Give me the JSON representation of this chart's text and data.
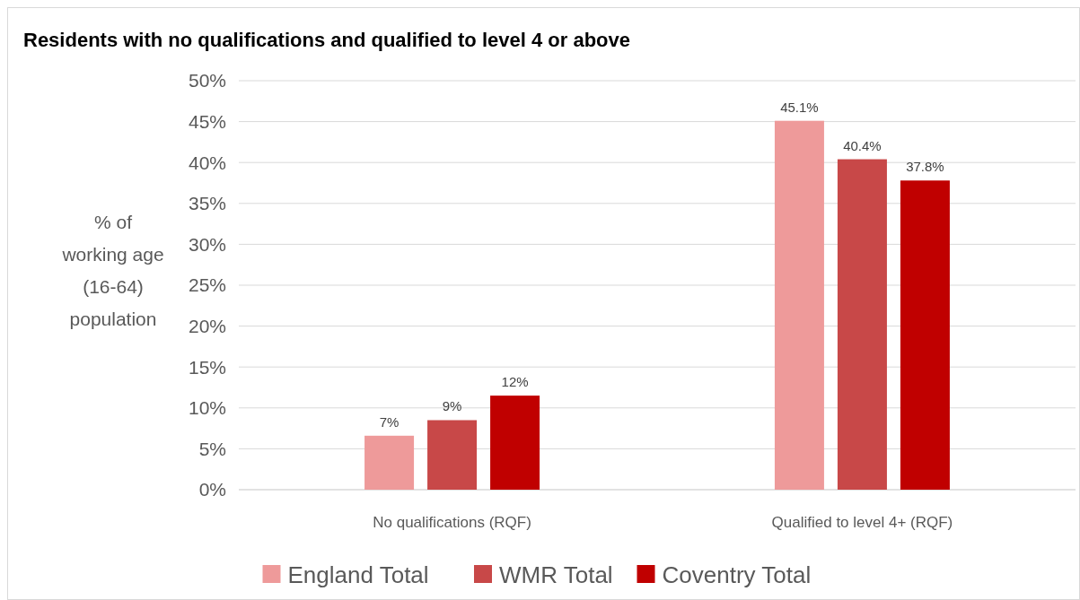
{
  "chart_data": {
    "type": "bar",
    "title": "Residents with no qualifications and qualified to level 4 or above",
    "ylabel": "% of working age (16-64) population",
    "categories": [
      "No qualifications (RQF)",
      "Qualified to level 4+ (RQF)"
    ],
    "series": [
      {
        "name": "England Total",
        "color": "#ee9a9a",
        "values": [
          6.6,
          45.1
        ],
        "value_labels": [
          "7%",
          "45.1%"
        ]
      },
      {
        "name": "WMR Total",
        "color": "#c84848",
        "values": [
          8.5,
          40.4
        ],
        "value_labels": [
          "9%",
          "40.4%"
        ]
      },
      {
        "name": "Coventry Total",
        "color": "#c00000",
        "values": [
          11.5,
          37.8
        ],
        "value_labels": [
          "12%",
          "37.8%"
        ]
      }
    ],
    "ylim": [
      0,
      50
    ],
    "yticks": [
      {
        "value": 0,
        "label": "0%"
      },
      {
        "value": 5,
        "label": "5%"
      },
      {
        "value": 10,
        "label": "10%"
      },
      {
        "value": 15,
        "label": "15%"
      },
      {
        "value": 20,
        "label": "20%"
      },
      {
        "value": 25,
        "label": "25%"
      },
      {
        "value": 30,
        "label": "30%"
      },
      {
        "value": 35,
        "label": "35%"
      },
      {
        "value": 40,
        "label": "40%"
      },
      {
        "value": 45,
        "label": "45%"
      },
      {
        "value": 50,
        "label": "50%"
      }
    ],
    "grid": "y",
    "legend": "bottom"
  }
}
